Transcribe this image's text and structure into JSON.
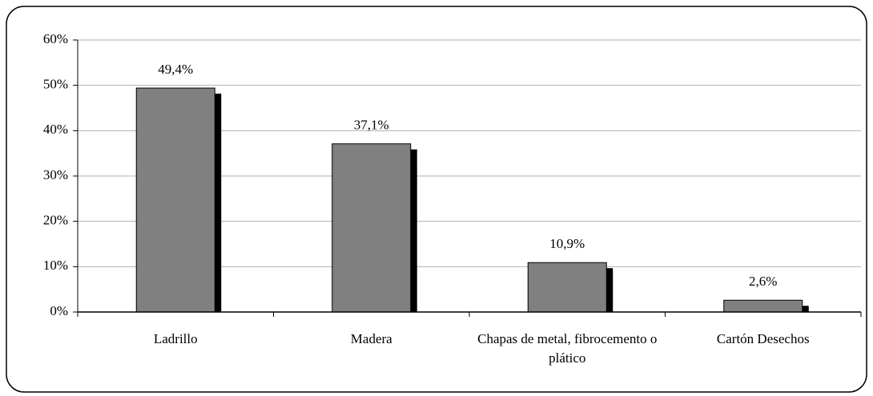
{
  "chart_data": {
    "type": "bar",
    "categories": [
      "Ladrillo",
      "Madera",
      "Chapas de metal, fibrocemento o plático",
      "Cartón Desechos"
    ],
    "values": [
      49.4,
      37.1,
      10.9,
      2.6
    ],
    "value_labels": [
      "49,4%",
      "37,1%",
      "10,9%",
      "2,6%"
    ],
    "color": "#808080",
    "ylim": [
      0,
      60
    ],
    "yticks": [
      {
        "value": 0,
        "label": "0%"
      },
      {
        "value": 10,
        "label": "10%"
      },
      {
        "value": 20,
        "label": "20%"
      },
      {
        "value": 30,
        "label": "30%"
      },
      {
        "value": 40,
        "label": "40%"
      },
      {
        "value": 50,
        "label": "50%"
      },
      {
        "value": 60,
        "label": "60%"
      }
    ],
    "grid": true
  }
}
